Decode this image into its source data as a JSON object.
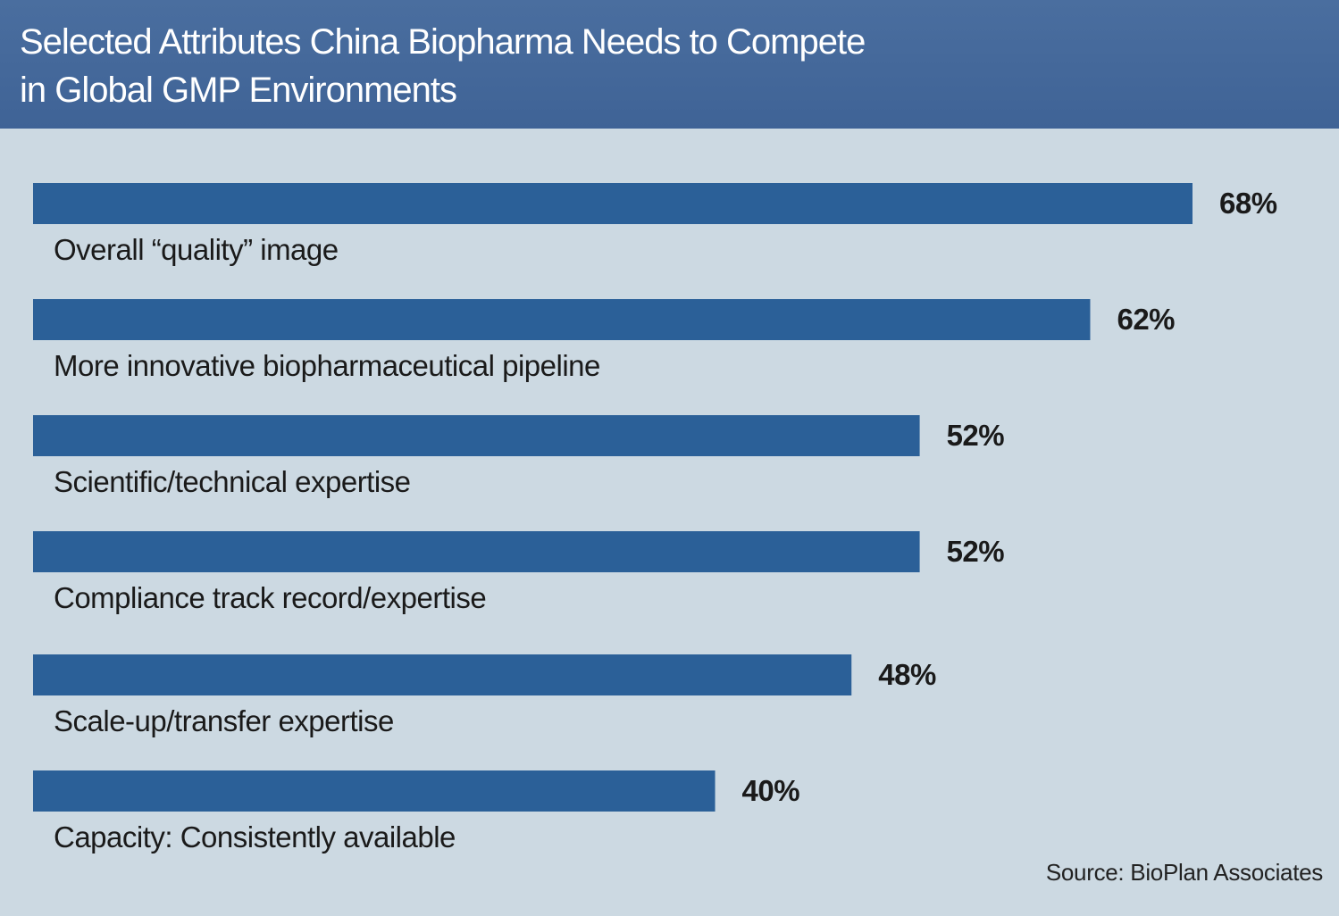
{
  "header": {
    "title": "Selected Attributes China Biopharma Needs to Compete\n in Global GMP Environments"
  },
  "colors": {
    "bar": "#2b6098",
    "background": "#ccd9e2",
    "header": "#4a6e9f"
  },
  "chart_data": {
    "type": "bar",
    "orientation": "horizontal",
    "title": "Selected Attributes China Biopharma Needs to Compete in Global GMP Environments",
    "categories": [
      "Overall “quality” image",
      "More innovative biopharmaceutical pipeline",
      "Scientific/technical expertise",
      "Compliance track record/expertise",
      "Scale-up/transfer expertise",
      "Capacity: Consistently available"
    ],
    "values": [
      68,
      62,
      52,
      52,
      48,
      40
    ],
    "value_labels": [
      "68%",
      "62%",
      "52%",
      "52%",
      "48%",
      "40%"
    ],
    "xlim": [
      0,
      68
    ],
    "unit": "%",
    "xlabel": "",
    "ylabel": "",
    "grid": false,
    "legend": "none"
  },
  "source": "Source: BioPlan Associates"
}
